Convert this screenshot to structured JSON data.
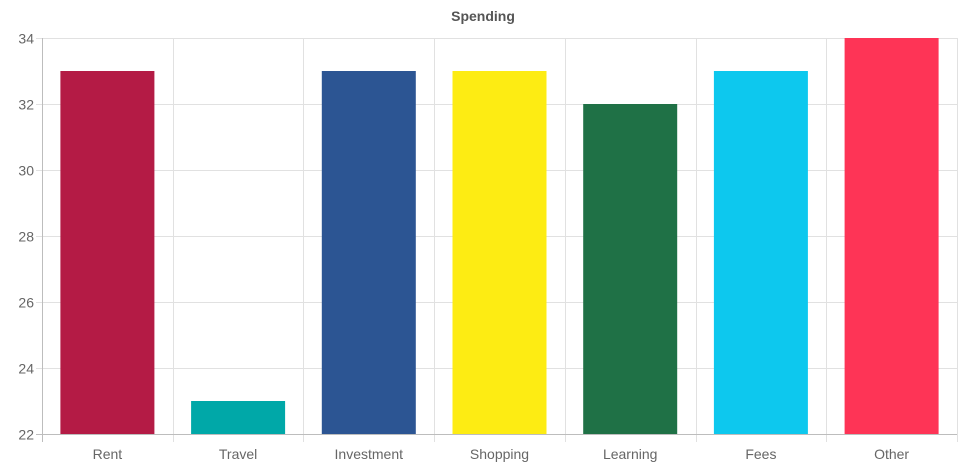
{
  "chart_data": {
    "type": "bar",
    "title": "Spending",
    "categories": [
      "Rent",
      "Travel",
      "Investment",
      "Shopping",
      "Learning",
      "Fees",
      "Other"
    ],
    "values": [
      33,
      23,
      33,
      33,
      32,
      33,
      34
    ],
    "colors": [
      "#b41b45",
      "#00a8a8",
      "#2c5593",
      "#fdec13",
      "#1f7146",
      "#0dc8ee",
      "#fe3456"
    ],
    "ylim": [
      22,
      34
    ],
    "yticks": [
      22,
      24,
      26,
      28,
      30,
      32,
      34
    ],
    "xlabel": "",
    "ylabel": "",
    "grid": true,
    "legend": "none"
  }
}
